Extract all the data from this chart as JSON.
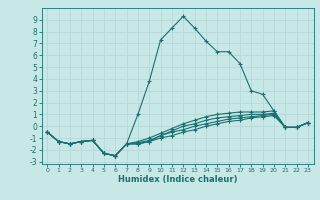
{
  "xlabel": "Humidex (Indice chaleur)",
  "background_color": "#c8e8e8",
  "grid_color": "#b8d8d8",
  "line_color": "#1a7070",
  "xlim": [
    -0.5,
    23.5
  ],
  "ylim": [
    -3.2,
    10.0
  ],
  "xticks": [
    0,
    1,
    2,
    3,
    4,
    5,
    6,
    7,
    8,
    9,
    10,
    11,
    12,
    13,
    14,
    15,
    16,
    17,
    18,
    19,
    20,
    21,
    22,
    23
  ],
  "yticks": [
    -3,
    -2,
    -1,
    0,
    1,
    2,
    3,
    4,
    5,
    6,
    7,
    8,
    9
  ],
  "series": [
    {
      "x": [
        0,
        1,
        2,
        3,
        4,
        5,
        6,
        7,
        8,
        9,
        10,
        11,
        12,
        13,
        14,
        15,
        16,
        17,
        18,
        19,
        20,
        21,
        22,
        23
      ],
      "y": [
        -0.5,
        -1.3,
        -1.5,
        -1.3,
        -1.2,
        -2.3,
        -2.5,
        -1.5,
        1.0,
        3.8,
        7.3,
        8.3,
        9.3,
        8.3,
        7.2,
        6.3,
        6.3,
        5.3,
        3.0,
        2.7,
        1.3,
        -0.1,
        -0.1,
        0.3
      ]
    },
    {
      "x": [
        0,
        1,
        2,
        3,
        4,
        5,
        6,
        7,
        8,
        9,
        10,
        11,
        12,
        13,
        14,
        15,
        16,
        17,
        18,
        19,
        20,
        21,
        22,
        23
      ],
      "y": [
        -0.5,
        -1.3,
        -1.5,
        -1.3,
        -1.2,
        -2.3,
        -2.5,
        -1.5,
        -1.5,
        -1.3,
        -1.0,
        -0.8,
        -0.5,
        -0.3,
        0.0,
        0.2,
        0.4,
        0.5,
        0.7,
        0.8,
        0.9,
        -0.1,
        -0.1,
        0.3
      ]
    },
    {
      "x": [
        0,
        1,
        2,
        3,
        4,
        5,
        6,
        7,
        8,
        9,
        10,
        11,
        12,
        13,
        14,
        15,
        16,
        17,
        18,
        19,
        20,
        21,
        22,
        23
      ],
      "y": [
        -0.5,
        -1.3,
        -1.5,
        -1.3,
        -1.2,
        -2.3,
        -2.5,
        -1.5,
        -1.5,
        -1.3,
        -0.8,
        -0.5,
        -0.3,
        0.0,
        0.2,
        0.4,
        0.6,
        0.7,
        0.8,
        0.9,
        1.0,
        -0.1,
        -0.1,
        0.3
      ]
    },
    {
      "x": [
        0,
        1,
        2,
        3,
        4,
        5,
        6,
        7,
        8,
        9,
        10,
        11,
        12,
        13,
        14,
        15,
        16,
        17,
        18,
        19,
        20,
        21,
        22,
        23
      ],
      "y": [
        -0.5,
        -1.3,
        -1.5,
        -1.3,
        -1.2,
        -2.3,
        -2.5,
        -1.5,
        -1.4,
        -1.2,
        -0.8,
        -0.4,
        0.0,
        0.2,
        0.5,
        0.7,
        0.8,
        0.9,
        1.0,
        1.0,
        1.1,
        -0.1,
        -0.1,
        0.3
      ]
    },
    {
      "x": [
        0,
        1,
        2,
        3,
        4,
        5,
        6,
        7,
        8,
        9,
        10,
        11,
        12,
        13,
        14,
        15,
        16,
        17,
        18,
        19,
        20,
        21,
        22,
        23
      ],
      "y": [
        -0.5,
        -1.3,
        -1.5,
        -1.3,
        -1.2,
        -2.3,
        -2.5,
        -1.5,
        -1.3,
        -1.0,
        -0.6,
        -0.2,
        0.2,
        0.5,
        0.8,
        1.0,
        1.1,
        1.2,
        1.2,
        1.2,
        1.3,
        -0.1,
        -0.1,
        0.3
      ]
    }
  ]
}
